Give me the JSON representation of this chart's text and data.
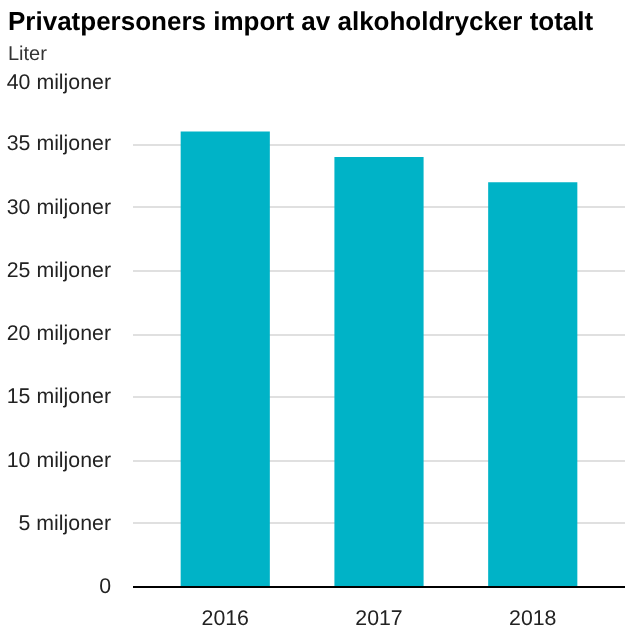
{
  "chart_data": {
    "type": "bar",
    "title": "Privatpersoners import av alkoholdrycker totalt",
    "subtitle": "Liter",
    "categories": [
      "2016",
      "2017",
      "2018"
    ],
    "values": [
      36,
      34,
      32
    ],
    "color": "#00b3c7",
    "ylim": [
      0,
      40
    ],
    "yticks": [
      0,
      {
        "value": 5,
        "label": "5 miljoner"
      },
      {
        "value": 10,
        "label": "10 miljoner"
      },
      {
        "value": 15,
        "label": "15 miljoner"
      },
      {
        "value": 20,
        "label": "20 miljoner"
      },
      {
        "value": 25,
        "label": "25 miljoner"
      },
      {
        "value": 30,
        "label": "30 miljoner"
      },
      {
        "value": 35,
        "label": "35 miljoner"
      },
      {
        "value": 40,
        "label": "40 miljoner"
      }
    ],
    "grid": "y"
  }
}
